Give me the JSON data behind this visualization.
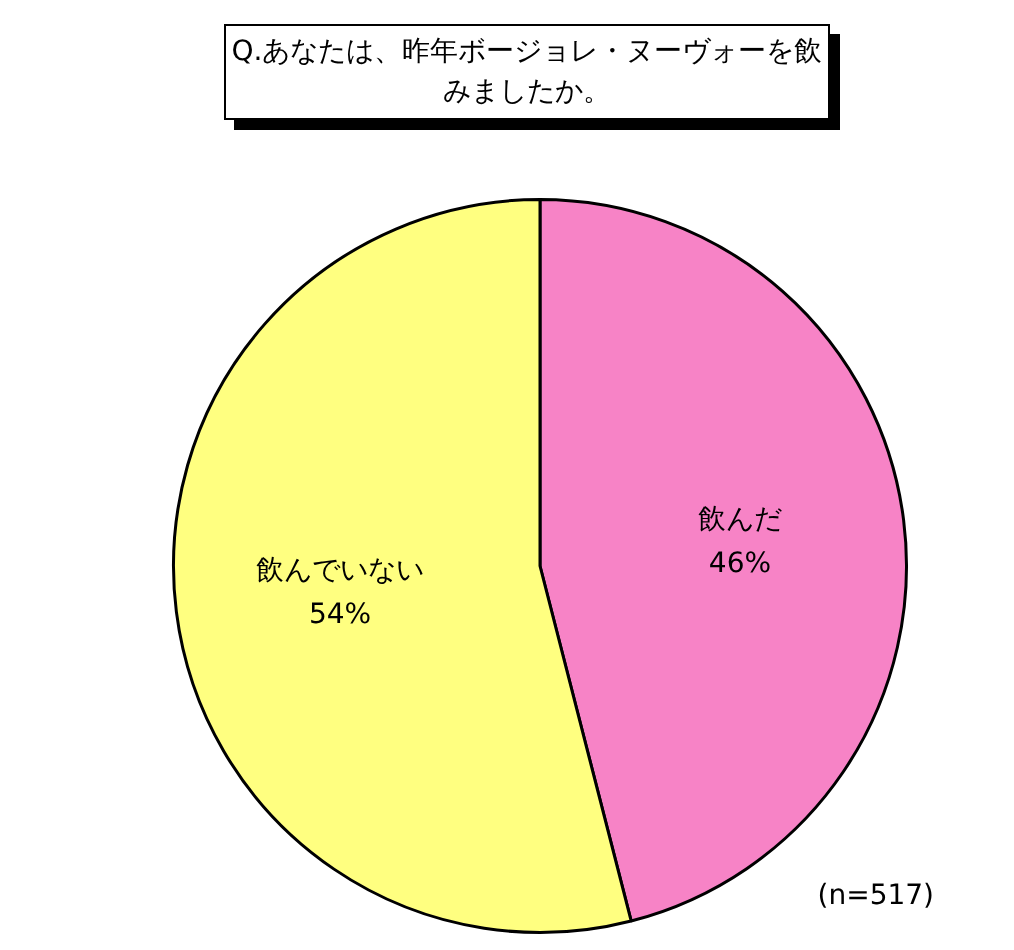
{
  "chart_data": {
    "type": "pie",
    "title": "Q.あなたは、昨年ボージョレ・ヌーヴォーを飲みましたか。",
    "categories": [
      "飲んだ",
      "飲んでいない"
    ],
    "values": [
      46,
      54
    ],
    "colors": [
      "#f783c6",
      "#ffff80"
    ],
    "value_labels": [
      "46%",
      "54%"
    ],
    "legend": false,
    "annotations": [
      "(n=517)"
    ]
  }
}
